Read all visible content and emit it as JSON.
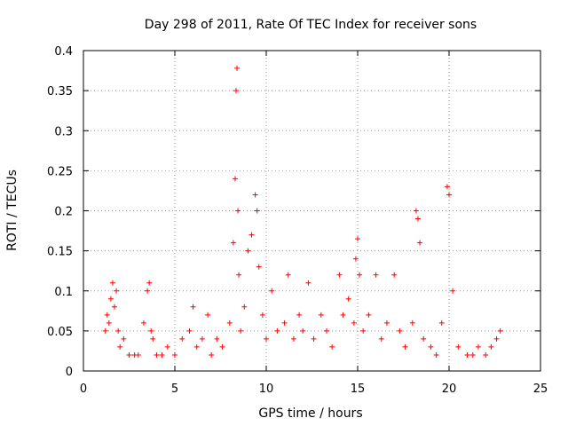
{
  "chart_data": {
    "type": "scatter",
    "title": "Day 298 of 2011, Rate Of TEC Index for receiver sons",
    "xlabel": "GPS time / hours",
    "ylabel": "ROTI / TECUs",
    "xlim": [
      0,
      25
    ],
    "ylim": [
      0,
      0.4
    ],
    "x_ticks": [
      0,
      5,
      10,
      15,
      20,
      25
    ],
    "x_tick_labels": [
      "0",
      "5",
      "10",
      "15",
      "20",
      "25"
    ],
    "y_ticks": [
      0,
      0.05,
      0.1,
      0.15,
      0.2,
      0.25,
      0.3,
      0.35,
      0.4
    ],
    "y_tick_labels": [
      "0",
      "0.05",
      "0.1",
      "0.15",
      "0.2",
      "0.25",
      "0.3",
      "0.35",
      "0.4"
    ],
    "grid": true,
    "marker": "+",
    "marker_color": "#ff0000",
    "series": [
      {
        "x": [
          1.2,
          1.3,
          1.4,
          1.5,
          1.6,
          1.7,
          1.8,
          1.9,
          2.0,
          2.2,
          2.5,
          2.8,
          3.0,
          3.3,
          3.5,
          3.6,
          3.7,
          3.8,
          4.0,
          4.3,
          4.6,
          5.0,
          5.4,
          5.8,
          6.0,
          6.2,
          6.5,
          6.8,
          7.0,
          7.3,
          7.6,
          8.0,
          8.2,
          8.3,
          8.35,
          8.4,
          8.45,
          8.5,
          8.6,
          8.8,
          9.0,
          9.2,
          9.4,
          9.5,
          9.6,
          9.8,
          10.0,
          10.3,
          10.6,
          11.0,
          11.2,
          11.5,
          11.8,
          12.0,
          12.3,
          12.6,
          13.0,
          13.3,
          13.6,
          14.0,
          14.2,
          14.5,
          14.8,
          14.9,
          15.0,
          15.1,
          15.3,
          15.6,
          16.0,
          16.3,
          16.6,
          17.0,
          17.3,
          17.6,
          18.0,
          18.2,
          18.3,
          18.4,
          18.6,
          19.0,
          19.3,
          19.6,
          19.9,
          20.0,
          20.2,
          20.5,
          21.0,
          21.3,
          21.6,
          22.0,
          22.3,
          22.6,
          22.8
        ],
        "y": [
          0.05,
          0.07,
          0.06,
          0.09,
          0.11,
          0.08,
          0.1,
          0.05,
          0.03,
          0.04,
          0.02,
          0.02,
          0.02,
          0.06,
          0.1,
          0.11,
          0.05,
          0.04,
          0.02,
          0.02,
          0.03,
          0.02,
          0.04,
          0.05,
          0.08,
          0.03,
          0.04,
          0.07,
          0.02,
          0.04,
          0.03,
          0.06,
          0.16,
          0.24,
          0.35,
          0.378,
          0.2,
          0.12,
          0.05,
          0.08,
          0.15,
          0.17,
          0.22,
          0.2,
          0.13,
          0.07,
          0.04,
          0.1,
          0.05,
          0.06,
          0.12,
          0.04,
          0.07,
          0.05,
          0.11,
          0.04,
          0.07,
          0.05,
          0.03,
          0.12,
          0.07,
          0.09,
          0.06,
          0.14,
          0.165,
          0.12,
          0.05,
          0.07,
          0.12,
          0.04,
          0.06,
          0.12,
          0.05,
          0.03,
          0.06,
          0.2,
          0.19,
          0.16,
          0.04,
          0.03,
          0.02,
          0.06,
          0.23,
          0.22,
          0.1,
          0.03,
          0.02,
          0.02,
          0.03,
          0.02,
          0.03,
          0.04,
          0.05
        ]
      }
    ]
  }
}
